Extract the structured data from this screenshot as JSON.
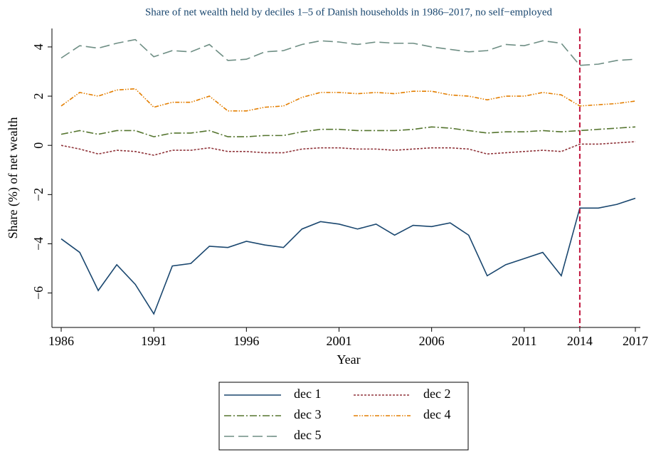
{
  "chart_data": {
    "type": "line",
    "title": "Share of net wealth held by deciles 1–5 of Danish households in 1986–2017, no self−employed",
    "x_label": "Year",
    "y_label": "Share (%) of net wealth",
    "x": [
      1986,
      1987,
      1988,
      1989,
      1990,
      1991,
      1992,
      1993,
      1994,
      1995,
      1996,
      1997,
      1998,
      1999,
      2000,
      2001,
      2002,
      2003,
      2004,
      2005,
      2006,
      2007,
      2008,
      2009,
      2010,
      2011,
      2012,
      2013,
      2014,
      2015,
      2016,
      2017
    ],
    "xlim": [
      1985.5,
      2017
    ],
    "xticks": [
      1986,
      1991,
      1996,
      2001,
      2006,
      2011,
      2014,
      2017
    ],
    "ylim": [
      -7.4,
      4.75
    ],
    "yticks": [
      {
        "value": -6,
        "label": "−6"
      },
      {
        "value": -4,
        "label": "−4"
      },
      {
        "value": -2,
        "label": "−2"
      },
      0,
      2,
      4
    ],
    "vline": {
      "x": 2014,
      "color": "#c0143c"
    },
    "series": [
      {
        "name": "dec 1",
        "color": "#1a476f",
        "dash": "none",
        "values": [
          -3.8,
          -4.35,
          -5.9,
          -4.85,
          -5.65,
          -6.85,
          -4.9,
          -4.8,
          -4.1,
          -4.15,
          -3.9,
          -4.05,
          -4.15,
          -3.4,
          -3.1,
          -3.2,
          -3.4,
          -3.2,
          -3.65,
          -3.25,
          -3.3,
          -3.15,
          -3.65,
          -5.3,
          -4.85,
          -4.6,
          -4.35,
          -5.3,
          -2.55,
          -2.55,
          -2.4,
          -2.15
        ]
      },
      {
        "name": "dec 2",
        "color": "#90353b",
        "dash": "3,2",
        "values": [
          0,
          -0.15,
          -0.35,
          -0.2,
          -0.25,
          -0.4,
          -0.2,
          -0.2,
          -0.1,
          -0.25,
          -0.25,
          -0.3,
          -0.3,
          -0.15,
          -0.1,
          -0.1,
          -0.15,
          -0.15,
          -0.2,
          -0.15,
          -0.1,
          -0.1,
          -0.15,
          -0.35,
          -0.3,
          -0.25,
          -0.2,
          -0.25,
          0.05,
          0.05,
          0.1,
          0.15
        ]
      },
      {
        "name": "dec 3",
        "color": "#55752f",
        "dash": "10,3,2,3",
        "values": [
          0.45,
          0.6,
          0.45,
          0.6,
          0.6,
          0.35,
          0.5,
          0.5,
          0.6,
          0.35,
          0.35,
          0.4,
          0.4,
          0.55,
          0.65,
          0.65,
          0.6,
          0.6,
          0.6,
          0.65,
          0.75,
          0.7,
          0.6,
          0.5,
          0.55,
          0.55,
          0.6,
          0.55,
          0.6,
          0.65,
          0.7,
          0.75
        ]
      },
      {
        "name": "dec 4",
        "color": "#e37e00",
        "dash": "6,2,1.5,2,1.5,2",
        "values": [
          1.6,
          2.15,
          2.0,
          2.25,
          2.3,
          1.55,
          1.75,
          1.75,
          2.0,
          1.4,
          1.4,
          1.55,
          1.6,
          1.95,
          2.15,
          2.15,
          2.1,
          2.15,
          2.1,
          2.2,
          2.2,
          2.05,
          2.0,
          1.85,
          2.0,
          2.0,
          2.15,
          2.05,
          1.6,
          1.65,
          1.7,
          1.8
        ]
      },
      {
        "name": "dec 5",
        "color": "#6e8e84",
        "dash": "14,6",
        "values": [
          3.55,
          4.05,
          3.95,
          4.15,
          4.3,
          3.6,
          3.85,
          3.8,
          4.1,
          3.45,
          3.5,
          3.8,
          3.85,
          4.1,
          4.25,
          4.2,
          4.1,
          4.2,
          4.15,
          4.15,
          4.0,
          3.9,
          3.8,
          3.85,
          4.1,
          4.05,
          4.25,
          4.15,
          3.25,
          3.3,
          3.45,
          3.5
        ]
      }
    ]
  }
}
